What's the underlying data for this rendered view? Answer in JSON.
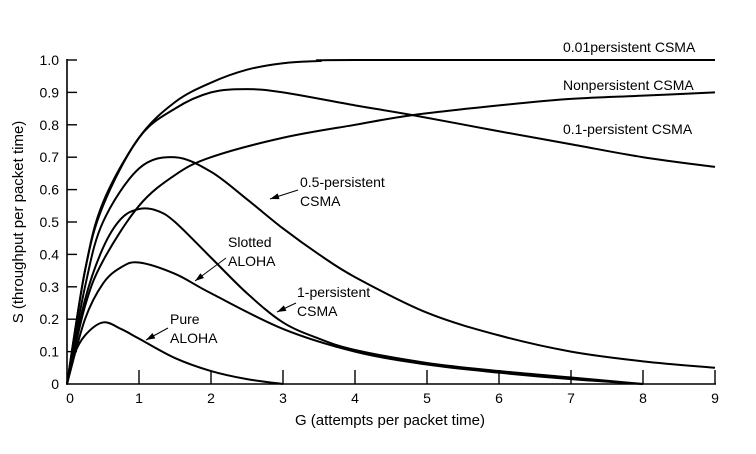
{
  "chart_data": {
    "type": "line",
    "title": "",
    "xlabel": "G (attempts per packet time)",
    "ylabel": "S (throughput per packet time)",
    "xlim": [
      0,
      9
    ],
    "ylim": [
      0,
      1.0
    ],
    "xticks": [
      "0",
      "1",
      "2",
      "3",
      "4",
      "5",
      "6",
      "7",
      "8",
      "9"
    ],
    "yticks": [
      "0",
      "0.1",
      "0.2",
      "0.3",
      "0.4",
      "0.5",
      "0.6",
      "0.7",
      "0.8",
      "0.9",
      "1.0"
    ],
    "grid": false,
    "series": [
      {
        "name": "Pure ALOHA",
        "label_lines": [
          "Pure",
          "ALOHA"
        ],
        "x": [
          0,
          0.1,
          0.25,
          0.5,
          0.75,
          1,
          1.5,
          2,
          2.5,
          3
        ],
        "y": [
          0,
          0.09,
          0.15,
          0.19,
          0.17,
          0.14,
          0.08,
          0.04,
          0.015,
          0
        ]
      },
      {
        "name": "Slotted ALOHA",
        "label_lines": [
          "Slotted",
          "ALOHA"
        ],
        "x": [
          0,
          0.25,
          0.5,
          0.75,
          1,
          1.5,
          2,
          3,
          4,
          5,
          6,
          7,
          8
        ],
        "y": [
          0,
          0.2,
          0.31,
          0.36,
          0.375,
          0.34,
          0.28,
          0.17,
          0.1,
          0.06,
          0.035,
          0.015,
          0
        ]
      },
      {
        "name": "1-persistent CSMA",
        "label_lines": [
          "1-persistent",
          "CSMA"
        ],
        "x": [
          0,
          0.25,
          0.5,
          0.75,
          1,
          1.25,
          1.5,
          2,
          2.5,
          3,
          3.5,
          4,
          5,
          6,
          7,
          8
        ],
        "y": [
          0,
          0.26,
          0.42,
          0.51,
          0.54,
          0.535,
          0.5,
          0.39,
          0.28,
          0.19,
          0.14,
          0.105,
          0.065,
          0.04,
          0.02,
          0
        ]
      },
      {
        "name": "0.5-persistent CSMA",
        "label_lines": [
          "0.5-persistent",
          "CSMA"
        ],
        "x": [
          0,
          0.25,
          0.5,
          1,
          1.5,
          2,
          2.5,
          3,
          3.5,
          4,
          5,
          6,
          7,
          8,
          9
        ],
        "y": [
          0,
          0.3,
          0.5,
          0.665,
          0.7,
          0.655,
          0.57,
          0.48,
          0.4,
          0.33,
          0.22,
          0.15,
          0.1,
          0.07,
          0.05
        ]
      },
      {
        "name": "Nonpersistent CSMA",
        "label_lines": [
          "Nonpersistent CSMA"
        ],
        "x": [
          0,
          0.25,
          0.5,
          1,
          1.5,
          2,
          3,
          4,
          4.8,
          6,
          7,
          8,
          9
        ],
        "y": [
          0,
          0.24,
          0.38,
          0.55,
          0.645,
          0.7,
          0.76,
          0.8,
          0.83,
          0.86,
          0.88,
          0.89,
          0.9
        ]
      },
      {
        "name": "0.1-persistent CSMA",
        "label_lines": [
          "0.1-persistent CSMA"
        ],
        "x": [
          0,
          0.25,
          0.5,
          1,
          1.5,
          2,
          2.5,
          3,
          4,
          4.8,
          6,
          7,
          8,
          9
        ],
        "y": [
          0,
          0.35,
          0.55,
          0.76,
          0.85,
          0.9,
          0.91,
          0.9,
          0.86,
          0.83,
          0.78,
          0.74,
          0.7,
          0.67
        ]
      },
      {
        "name": "0.01persistent CSMA",
        "label_lines": [
          "0.01persistent CSMA"
        ],
        "x": [
          0,
          0.25,
          0.5,
          1,
          1.5,
          2,
          2.5,
          3,
          3.5,
          4,
          9
        ],
        "y": [
          0,
          0.35,
          0.56,
          0.76,
          0.87,
          0.93,
          0.97,
          0.99,
          0.997,
          1.0,
          1.0
        ]
      }
    ]
  }
}
